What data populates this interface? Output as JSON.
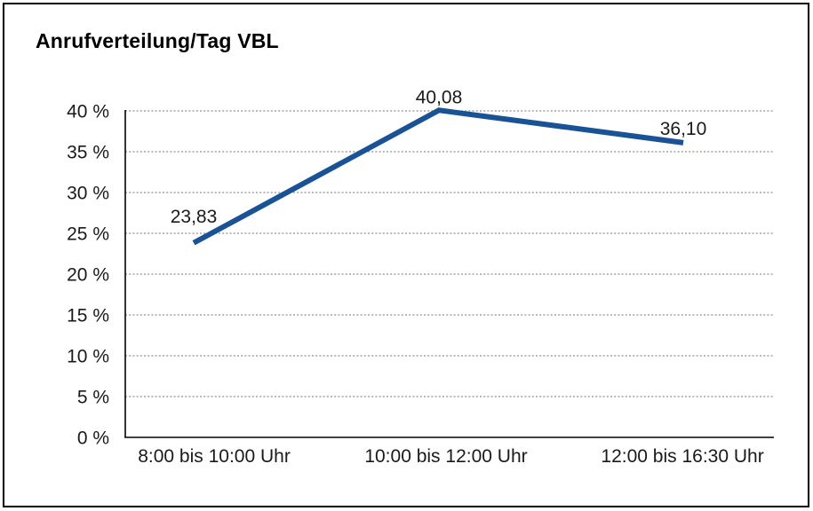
{
  "title": "Anrufverteilung/Tag VBL",
  "chart_data": {
    "type": "line",
    "title": "Anrufverteilung/Tag VBL",
    "categories": [
      "8:00 bis 10:00 Uhr",
      "10:00 bis 12:00 Uhr",
      "12:00 bis 16:30 Uhr"
    ],
    "values": [
      23.83,
      40.08,
      36.1
    ],
    "point_labels": [
      "23,83",
      "40,08",
      "36,10"
    ],
    "ylim": [
      0,
      40
    ],
    "yticks": [
      0,
      5,
      10,
      15,
      20,
      25,
      30,
      35,
      40
    ],
    "ytick_labels": [
      "0 %",
      "5 %",
      "10 %",
      "15 %",
      "20 %",
      "25 %",
      "30 %",
      "35 %",
      "40 %"
    ],
    "xlabel": "",
    "ylabel": "",
    "legend": "none",
    "grid": {
      "horizontal": true,
      "style": "dotted",
      "color": "#8f8f8f"
    },
    "line_color": "#1a5296",
    "axis_color": "#000000",
    "text_color": "#1a1a1a",
    "background": "#ffffff",
    "border_color": "#000000"
  }
}
